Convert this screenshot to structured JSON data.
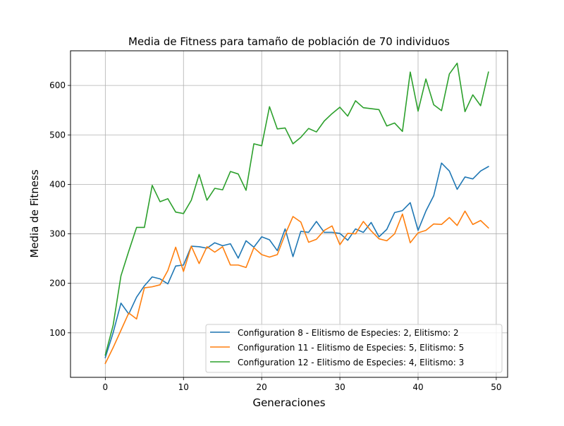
{
  "chart_data": {
    "type": "line",
    "title": "Media de Fitness para tamaño de población de 70 individuos",
    "xlabel": "Generaciones",
    "ylabel": "Media de Fitness",
    "xlim": [
      -4.45,
      51.45
    ],
    "ylim": [
      10,
      670
    ],
    "xticks": [
      0,
      10,
      20,
      30,
      40,
      50
    ],
    "yticks": [
      100,
      200,
      300,
      400,
      500,
      600
    ],
    "grid": true,
    "legend_position": "lower right",
    "x": [
      0,
      1,
      2,
      3,
      4,
      5,
      6,
      7,
      8,
      9,
      10,
      11,
      12,
      13,
      14,
      15,
      16,
      17,
      18,
      19,
      20,
      21,
      22,
      23,
      24,
      25,
      26,
      27,
      28,
      29,
      30,
      31,
      32,
      33,
      34,
      35,
      36,
      37,
      38,
      39,
      40,
      41,
      42,
      43,
      44,
      45,
      46,
      47,
      48,
      49
    ],
    "series": [
      {
        "name": "Configuration 8 - Elitismo de Especies: 2, Elitismo: 2",
        "color": "#1f77b4",
        "values": [
          50,
          100,
          160,
          138,
          172,
          195,
          213,
          209,
          199,
          235,
          237,
          275,
          274,
          271,
          282,
          276,
          280,
          251,
          286,
          273,
          294,
          288,
          266,
          310,
          254,
          305,
          303,
          325,
          303,
          303,
          301,
          287,
          310,
          303,
          323,
          294,
          309,
          343,
          347,
          363,
          307,
          346,
          377,
          443,
          427,
          390,
          415,
          411,
          427,
          436
        ]
      },
      {
        "name": "Configuration 11 - Elitismo de Especies: 5, Elitismo: 5",
        "color": "#ff7f0e",
        "values": [
          38,
          70,
          105,
          140,
          128,
          191,
          193,
          197,
          226,
          273,
          224,
          275,
          240,
          274,
          263,
          274,
          237,
          237,
          232,
          272,
          258,
          253,
          258,
          299,
          335,
          324,
          283,
          289,
          307,
          316,
          278,
          301,
          300,
          325,
          306,
          290,
          286,
          300,
          340,
          282,
          302,
          307,
          320,
          319,
          333,
          317,
          346,
          319,
          327,
          312
        ]
      },
      {
        "name": "Configuration 12 - Elitismo de Especies: 4, Elitismo: 3",
        "color": "#2ca02c",
        "values": [
          55,
          115,
          215,
          265,
          313,
          313,
          398,
          365,
          371,
          344,
          341,
          368,
          420,
          368,
          392,
          389,
          426,
          421,
          388,
          482,
          478,
          557,
          512,
          514,
          482,
          495,
          513,
          506,
          528,
          543,
          556,
          538,
          569,
          555,
          553,
          551,
          518,
          524,
          507,
          627,
          548,
          613,
          561,
          549,
          623,
          645,
          547,
          581,
          559,
          627
        ]
      }
    ]
  }
}
